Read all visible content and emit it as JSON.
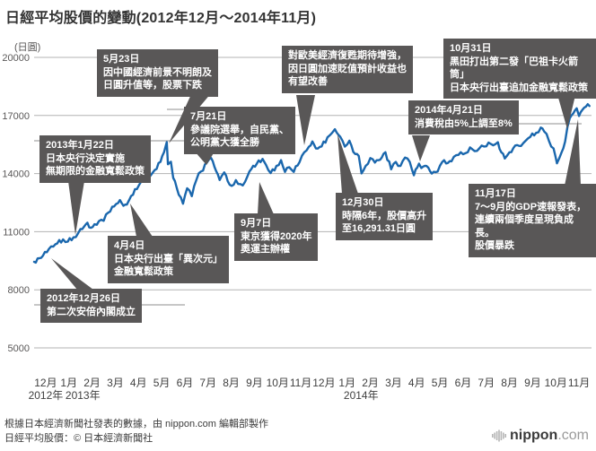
{
  "title": "日經平均股價的變動(2012年12月～2014年11月)",
  "colors": {
    "line": "#1a67ad",
    "annotation_bg": "#595757",
    "grid": "#b3b3b3",
    "axis_text": "#595757",
    "leader": "#8f8f8f"
  },
  "annotations": [
    {
      "id": "dec26-2012",
      "text": "2012年12月26日\n第二次安倍內閣成立"
    },
    {
      "id": "jan22-2013",
      "text": "2013年1月22日\n日本央行決定實施\n無期限的金融寬鬆政策"
    },
    {
      "id": "apr4-2013",
      "text": "4月4日\n日本央行出臺「異次元」\n金融寬鬆政策"
    },
    {
      "id": "may23-2013",
      "text": "5月23日\n因中國經濟前景不明朗及\n日圓升值等，股票下跌"
    },
    {
      "id": "jul21-2013",
      "text": "7月21日\n參議院選舉，自民黨、\n公明黨大獲全勝"
    },
    {
      "id": "sep7-2013",
      "text": "9月7日\n東京獲得2020年\n奧運主辦權"
    },
    {
      "id": "eu-us-recovery",
      "text": "對歐美經濟復甦期待增強，\n因日圓加速貶值預計收益也\n有望改善"
    },
    {
      "id": "dec30-2013",
      "text": "12月30日\n時隔6年，股價高升\n至16,291.31日圓"
    },
    {
      "id": "apr21-2014",
      "text": "2014年4月21日\n消費稅由5%上調至8%"
    },
    {
      "id": "oct31-2014",
      "text": "10月31日\n黑田打出第二發「巴祖卡火箭筒」\n日本央行出臺追加金融寬鬆政策"
    },
    {
      "id": "nov17-2014",
      "text": "11月17日\n7～9月的GDP速報發表，\n連續兩個季度呈現負成長。\n股價暴跌"
    }
  ],
  "footer": {
    "line1": "根據日本經濟新聞社發表的數據，由 nippon.com 編輯部製作",
    "line2": "日經平均股價：© 日本經濟新聞社",
    "logo_main": "nippon",
    "logo_suffix": ".com"
  },
  "chart_data": {
    "type": "line",
    "title": "日經平均股價的變動(2012年12月～2014年11月)",
    "unit_label": "(日圓)",
    "ylabel": "日圓",
    "ylim": [
      5000,
      20000
    ],
    "y_ticks": [
      20000,
      17000,
      14000,
      11000,
      8000,
      5000
    ],
    "grid": "horizontal",
    "x_range_months": 24,
    "x_month_labels": [
      "12月",
      "1月",
      "2月",
      "3月",
      "4月",
      "5月",
      "6月",
      "7月",
      "8月",
      "9月",
      "10月",
      "11月",
      "12月",
      "1月",
      "2月",
      "3月",
      "4月",
      "5月",
      "6月",
      "7月",
      "8月",
      "9月",
      "10月",
      "11月"
    ],
    "year_labels": [
      {
        "text": "2012年",
        "month": 0.5
      },
      {
        "text": "2013年",
        "month": 2.1
      },
      {
        "text": "2014年",
        "month": 14.1
      }
    ],
    "series": [
      {
        "name": "日經平均股價",
        "points": [
          [
            0.0,
            9446
          ],
          [
            0.3,
            9650
          ],
          [
            0.55,
            9940
          ],
          [
            0.83,
            10230
          ],
          [
            1.0,
            10395
          ],
          [
            1.25,
            10600
          ],
          [
            1.45,
            10486
          ],
          [
            1.7,
            10709
          ],
          [
            1.9,
            10926
          ],
          [
            2.0,
            11139
          ],
          [
            2.15,
            11250
          ],
          [
            2.3,
            11463
          ],
          [
            2.45,
            11200
          ],
          [
            2.6,
            11385
          ],
          [
            2.8,
            11550
          ],
          [
            3.0,
            11560
          ],
          [
            3.2,
            11986
          ],
          [
            3.45,
            12300
          ],
          [
            3.7,
            12635
          ],
          [
            3.85,
            12336
          ],
          [
            4.0,
            12398
          ],
          [
            4.1,
            12634
          ],
          [
            4.35,
            13200
          ],
          [
            4.6,
            13550
          ],
          [
            4.85,
            13884
          ],
          [
            5.0,
            13860
          ],
          [
            5.2,
            14180
          ],
          [
            5.45,
            14608
          ],
          [
            5.6,
            15096
          ],
          [
            5.72,
            15627
          ],
          [
            5.77,
            14483
          ],
          [
            5.9,
            14612
          ],
          [
            6.0,
            13775
          ],
          [
            6.15,
            13262
          ],
          [
            6.42,
            12445
          ],
          [
            6.6,
            13240
          ],
          [
            6.8,
            12834
          ],
          [
            7.0,
            13677
          ],
          [
            7.2,
            14110
          ],
          [
            7.45,
            14566
          ],
          [
            7.63,
            14808
          ],
          [
            7.85,
            14130
          ],
          [
            8.0,
            13668
          ],
          [
            8.2,
            14060
          ],
          [
            8.35,
            13605
          ],
          [
            8.52,
            13365
          ],
          [
            8.7,
            13660
          ],
          [
            8.9,
            13460
          ],
          [
            9.0,
            13389
          ],
          [
            9.2,
            13860
          ],
          [
            9.45,
            14404
          ],
          [
            9.6,
            14505
          ],
          [
            9.85,
            14760
          ],
          [
            10.0,
            14456
          ],
          [
            10.2,
            14026
          ],
          [
            10.45,
            14400
          ],
          [
            10.65,
            14694
          ],
          [
            10.82,
            14088
          ],
          [
            11.0,
            14328
          ],
          [
            11.2,
            14086
          ],
          [
            11.45,
            14600
          ],
          [
            11.65,
            15100
          ],
          [
            11.85,
            15382
          ],
          [
            12.0,
            15662
          ],
          [
            12.15,
            15300
          ],
          [
            12.4,
            15404
          ],
          [
            12.65,
            15870
          ],
          [
            12.85,
            16100
          ],
          [
            12.97,
            16291
          ],
          [
            13.2,
            15908
          ],
          [
            13.4,
            15392
          ],
          [
            13.6,
            15700
          ],
          [
            13.85,
            15008
          ],
          [
            14.0,
            14914
          ],
          [
            14.12,
            14008
          ],
          [
            14.3,
            14400
          ],
          [
            14.5,
            14800
          ],
          [
            14.7,
            14568
          ],
          [
            15.0,
            14841
          ],
          [
            15.15,
            15100
          ],
          [
            15.4,
            14224
          ],
          [
            15.6,
            14600
          ],
          [
            15.8,
            14400
          ],
          [
            16.0,
            14828
          ],
          [
            16.2,
            14600
          ],
          [
            16.38,
            13910
          ],
          [
            16.6,
            14512
          ],
          [
            16.7,
            14288
          ],
          [
            17.0,
            14304
          ],
          [
            17.15,
            14000
          ],
          [
            17.4,
            14100
          ],
          [
            17.6,
            14600
          ],
          [
            17.85,
            14550
          ],
          [
            18.0,
            14632
          ],
          [
            18.2,
            14950
          ],
          [
            18.4,
            15100
          ],
          [
            18.6,
            15050
          ],
          [
            18.8,
            15350
          ],
          [
            19.0,
            15162
          ],
          [
            19.2,
            15300
          ],
          [
            19.4,
            15400
          ],
          [
            19.6,
            15600
          ],
          [
            19.8,
            15460
          ],
          [
            20.0,
            15620
          ],
          [
            20.15,
            15100
          ],
          [
            20.3,
            14778
          ],
          [
            20.5,
            15100
          ],
          [
            20.75,
            15450
          ],
          [
            21.0,
            15424
          ],
          [
            21.2,
            15700
          ],
          [
            21.4,
            15900
          ],
          [
            21.65,
            16100
          ],
          [
            21.85,
            16374
          ],
          [
            22.0,
            16173
          ],
          [
            22.2,
            15700
          ],
          [
            22.4,
            15300
          ],
          [
            22.55,
            14532
          ],
          [
            22.75,
            15100
          ],
          [
            22.9,
            15658
          ],
          [
            23.0,
            16413
          ],
          [
            23.1,
            16862
          ],
          [
            23.25,
            17100
          ],
          [
            23.4,
            17370
          ],
          [
            23.5,
            16973
          ],
          [
            23.65,
            17300
          ],
          [
            23.8,
            17459
          ],
          [
            23.95,
            17490
          ]
        ]
      }
    ]
  }
}
